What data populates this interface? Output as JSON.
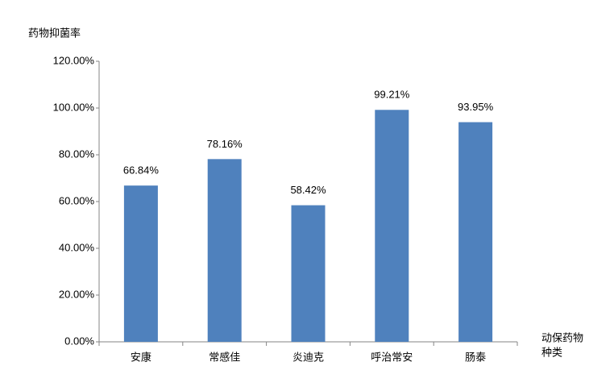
{
  "chart_data": {
    "type": "bar",
    "y_label": "药物抑菌率",
    "x_label": [
      "动保药物",
      "种类"
    ],
    "categories": [
      "安康",
      "常感佳",
      "炎迪克",
      "呼治常安",
      "肠泰"
    ],
    "values": [
      66.84,
      78.16,
      58.42,
      99.21,
      93.95
    ],
    "value_labels": [
      "66.84%",
      "78.16%",
      "58.42%",
      "99.21%",
      "93.95%"
    ],
    "color": "#4f81bd",
    "ylim": [
      0,
      120
    ],
    "yticks": [
      {
        "value": 0,
        "label": "0.00%"
      },
      {
        "value": 20,
        "label": "20.00%"
      },
      {
        "value": 40,
        "label": "40.00%"
      },
      {
        "value": 60,
        "label": "60.00%"
      },
      {
        "value": 80,
        "label": "80.00%"
      },
      {
        "value": 100,
        "label": "100.00%"
      },
      {
        "value": 120,
        "label": "120.00%"
      }
    ]
  }
}
